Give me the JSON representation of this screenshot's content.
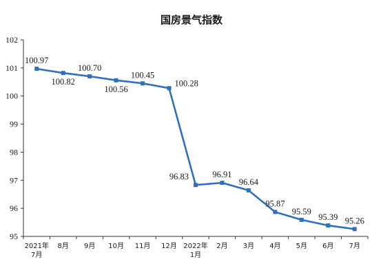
{
  "chart_data": {
    "type": "line",
    "title": "国房景气指数",
    "categories": [
      [
        "2021年",
        "7月"
      ],
      [
        "8月"
      ],
      [
        "9月"
      ],
      [
        "10月"
      ],
      [
        "11月"
      ],
      [
        "12月"
      ],
      [
        "2022年",
        "1月"
      ],
      [
        "2月"
      ],
      [
        "3月"
      ],
      [
        "4月"
      ],
      [
        "5月"
      ],
      [
        "6月"
      ],
      [
        "7月"
      ]
    ],
    "values": [
      100.97,
      100.82,
      100.7,
      100.56,
      100.45,
      100.28,
      96.83,
      96.91,
      96.64,
      95.87,
      95.59,
      95.39,
      95.26
    ],
    "data_labels": [
      "100.97",
      "100.82",
      "100.70",
      "100.56",
      "100.45",
      "100.28",
      "96.83",
      "96.91",
      "96.64",
      "95.87",
      "95.59",
      "95.39",
      "95.26"
    ],
    "ylim": [
      95,
      102
    ],
    "yticks": [
      "95",
      "96",
      "97",
      "98",
      "99",
      "100",
      "101",
      "102"
    ],
    "grid": false,
    "legend": "none",
    "line_color": "#2e6fbf"
  }
}
